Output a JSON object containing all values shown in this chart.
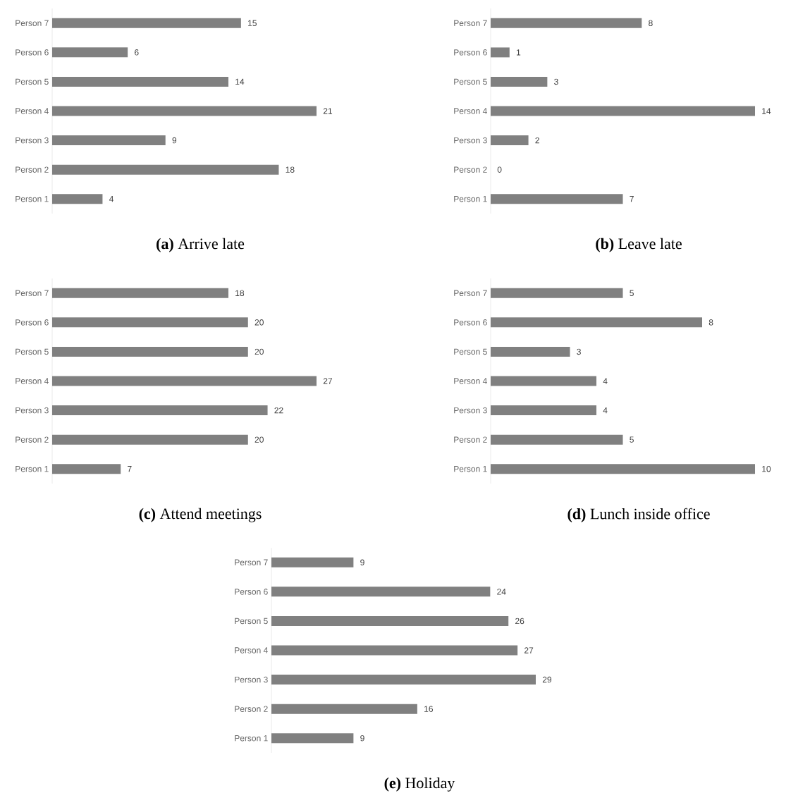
{
  "chart_data": [
    {
      "type": "bar",
      "orientation": "horizontal",
      "title": "**(a)** Arrive late",
      "categories": [
        "Person 7",
        "Person 6",
        "Person 5",
        "Person 4",
        "Person 3",
        "Person 2",
        "Person 1"
      ],
      "values": [
        15,
        6,
        14,
        21,
        9,
        18,
        4
      ],
      "color": "#808080",
      "data_labels": true
    },
    {
      "type": "bar",
      "orientation": "horizontal",
      "title": "**(b)** Leave late",
      "categories": [
        "Person 7",
        "Person 6",
        "Person 5",
        "Person 4",
        "Person 3",
        "Person 2",
        "Person 1"
      ],
      "values": [
        8,
        1,
        3,
        14,
        2,
        0,
        7
      ],
      "color": "#808080",
      "data_labels": true
    },
    {
      "type": "bar",
      "orientation": "horizontal",
      "title": "**(c)** Attend meetings",
      "categories": [
        "Person 7",
        "Person 6",
        "Person 5",
        "Person 4",
        "Person 3",
        "Person 2",
        "Person 1"
      ],
      "values": [
        18,
        20,
        20,
        27,
        22,
        20,
        7
      ],
      "color": "#808080",
      "data_labels": true
    },
    {
      "type": "bar",
      "orientation": "horizontal",
      "title": "**(d)** Lunch inside office",
      "categories": [
        "Person 7",
        "Person 6",
        "Person 5",
        "Person 4",
        "Person 3",
        "Person 2",
        "Person 1"
      ],
      "values": [
        5,
        8,
        3,
        4,
        4,
        5,
        10
      ],
      "color": "#808080",
      "data_labels": true
    },
    {
      "type": "bar",
      "orientation": "horizontal",
      "title": "**(e)** Holiday",
      "categories": [
        "Person 7",
        "Person 6",
        "Person 5",
        "Person 4",
        "Person 3",
        "Person 2",
        "Person 1"
      ],
      "values": [
        9,
        24,
        26,
        27,
        29,
        16,
        9
      ],
      "color": "#808080",
      "data_labels": true
    }
  ]
}
